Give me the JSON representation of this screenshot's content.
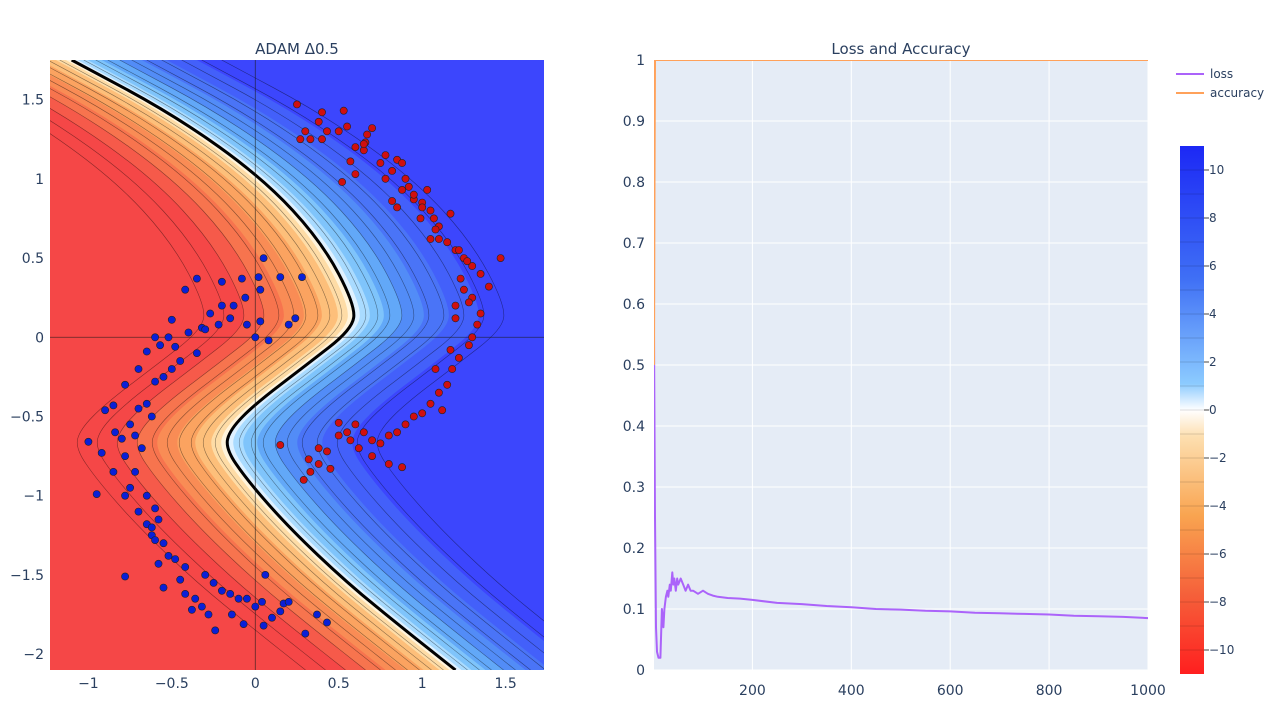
{
  "chart_data": [
    {
      "type": "contour-scatter",
      "title": "ADAM Δ0.5",
      "xlabel": "",
      "ylabel": "",
      "xlim": [
        -1.23,
        1.73
      ],
      "ylim": [
        -2.1,
        1.75
      ],
      "xticks": [
        -1,
        -0.5,
        0,
        0.5,
        1,
        1.5
      ],
      "xtick_labels": [
        "−1",
        "−0.5",
        "0",
        "0.5",
        "1",
        "1.5"
      ],
      "yticks": [
        -2,
        -1.5,
        -1,
        -0.5,
        0,
        0.5,
        1,
        1.5
      ],
      "ytick_labels": [
        "−2",
        "−1.5",
        "−1",
        "−0.5",
        "0",
        "0.5",
        "1",
        "1.5"
      ],
      "decision_boundary": [
        [
          -1.1,
          1.75
        ],
        [
          -0.48,
          1.4
        ],
        [
          0.05,
          1.0
        ],
        [
          0.4,
          0.6
        ],
        [
          0.6,
          0.2
        ],
        [
          0.58,
          0.05
        ],
        [
          0.3,
          -0.18
        ],
        [
          0.0,
          -0.42
        ],
        [
          -0.15,
          -0.58
        ],
        [
          -0.18,
          -0.7
        ],
        [
          -0.05,
          -0.9
        ],
        [
          0.2,
          -1.2
        ],
        [
          0.55,
          -1.55
        ],
        [
          0.9,
          -1.85
        ],
        [
          1.2,
          -2.1
        ]
      ],
      "series": [
        {
          "name": "class 0",
          "color": "#0a1fd8",
          "points": [
            [
              -0.08,
              0.37
            ],
            [
              -0.06,
              0.25
            ],
            [
              -0.05,
              0.08
            ],
            [
              0.0,
              0.0
            ],
            [
              0.03,
              0.1
            ],
            [
              0.08,
              -0.02
            ],
            [
              0.15,
              0.38
            ],
            [
              0.28,
              0.38
            ],
            [
              0.24,
              0.12
            ],
            [
              -0.13,
              0.2
            ],
            [
              -0.2,
              0.2
            ],
            [
              -0.27,
              0.15
            ],
            [
              -0.32,
              0.06
            ],
            [
              -0.4,
              0.03
            ],
            [
              -0.5,
              0.11
            ],
            [
              -0.6,
              0.0
            ],
            [
              -0.65,
              -0.09
            ],
            [
              -0.7,
              -0.2
            ],
            [
              -0.78,
              -0.3
            ],
            [
              -0.85,
              -0.43
            ],
            [
              -0.9,
              -0.46
            ],
            [
              -0.84,
              -0.6
            ],
            [
              -0.8,
              -0.64
            ],
            [
              -0.75,
              -0.55
            ],
            [
              -0.7,
              -0.45
            ],
            [
              -0.65,
              -0.42
            ],
            [
              -0.6,
              -0.28
            ],
            [
              -0.55,
              -0.25
            ],
            [
              -0.5,
              -0.2
            ],
            [
              -0.45,
              -0.15
            ],
            [
              -0.35,
              -0.1
            ],
            [
              -0.3,
              0.05
            ],
            [
              -0.22,
              0.08
            ],
            [
              -0.15,
              0.12
            ],
            [
              0.05,
              0.5
            ],
            [
              0.02,
              0.38
            ],
            [
              -0.35,
              0.37
            ],
            [
              -0.42,
              0.3
            ],
            [
              -0.62,
              -0.5
            ],
            [
              -0.72,
              -0.62
            ],
            [
              -0.68,
              -0.7
            ],
            [
              -1.0,
              -0.66
            ],
            [
              -0.92,
              -0.73
            ],
            [
              -0.78,
              -0.75
            ],
            [
              -0.72,
              -0.85
            ],
            [
              -0.75,
              -0.95
            ],
            [
              -0.78,
              -1.0
            ],
            [
              -0.85,
              -0.85
            ],
            [
              -0.95,
              -0.99
            ],
            [
              -0.7,
              -1.1
            ],
            [
              -0.65,
              -1.18
            ],
            [
              -0.62,
              -1.25
            ],
            [
              -0.6,
              -1.28
            ],
            [
              -0.55,
              -1.3
            ],
            [
              -0.58,
              -1.15
            ],
            [
              -0.52,
              -1.38
            ],
            [
              -0.48,
              -1.4
            ],
            [
              -0.42,
              -1.45
            ],
            [
              -0.58,
              -1.43
            ],
            [
              -0.78,
              -1.51
            ],
            [
              -0.55,
              -1.58
            ],
            [
              -0.42,
              -1.62
            ],
            [
              -0.36,
              -1.65
            ],
            [
              -0.3,
              -1.5
            ],
            [
              -0.25,
              -1.55
            ],
            [
              -0.2,
              -1.6
            ],
            [
              -0.28,
              -1.75
            ],
            [
              -0.24,
              -1.85
            ],
            [
              -0.15,
              -1.62
            ],
            [
              -0.14,
              -1.75
            ],
            [
              -0.07,
              -1.81
            ],
            [
              -0.05,
              -1.65
            ],
            [
              0.0,
              -1.7
            ],
            [
              0.05,
              -1.82
            ],
            [
              0.04,
              -1.67
            ],
            [
              0.1,
              -1.77
            ],
            [
              0.15,
              -1.73
            ],
            [
              0.17,
              -1.68
            ],
            [
              0.2,
              -1.67
            ],
            [
              0.06,
              -1.5
            ],
            [
              0.37,
              -1.75
            ],
            [
              0.3,
              -1.87
            ],
            [
              0.43,
              -1.8
            ],
            [
              -0.1,
              -1.65
            ],
            [
              -0.45,
              -1.53
            ],
            [
              -0.38,
              -1.72
            ],
            [
              -0.32,
              -1.7
            ],
            [
              -0.6,
              -1.08
            ],
            [
              -0.65,
              -1.0
            ],
            [
              -0.62,
              -1.2
            ],
            [
              0.2,
              0.08
            ],
            [
              -0.2,
              0.35
            ],
            [
              0.03,
              0.3
            ],
            [
              -0.57,
              -0.05
            ],
            [
              -0.52,
              0.0
            ],
            [
              -0.48,
              -0.06
            ]
          ]
        },
        {
          "name": "class 1",
          "color": "#d10f0f",
          "points": [
            [
              0.25,
              1.47
            ],
            [
              0.4,
              1.42
            ],
            [
              0.38,
              1.36
            ],
            [
              0.4,
              1.25
            ],
            [
              0.43,
              1.3
            ],
            [
              0.5,
              1.3
            ],
            [
              0.55,
              1.33
            ],
            [
              0.6,
              1.2
            ],
            [
              0.65,
              1.18
            ],
            [
              0.66,
              1.23
            ],
            [
              0.67,
              1.28
            ],
            [
              0.7,
              1.32
            ],
            [
              0.75,
              1.1
            ],
            [
              0.78,
              1.15
            ],
            [
              0.82,
              1.05
            ],
            [
              0.85,
              1.12
            ],
            [
              0.88,
              1.1
            ],
            [
              0.9,
              1.0
            ],
            [
              0.92,
              0.95
            ],
            [
              0.95,
              0.87
            ],
            [
              1.0,
              0.85
            ],
            [
              1.05,
              0.8
            ],
            [
              1.07,
              0.75
            ],
            [
              1.1,
              0.7
            ],
            [
              1.15,
              0.6
            ],
            [
              1.2,
              0.55
            ],
            [
              1.25,
              0.5
            ],
            [
              1.3,
              0.45
            ],
            [
              1.35,
              0.4
            ],
            [
              1.3,
              0.25
            ],
            [
              1.35,
              0.15
            ],
            [
              1.33,
              0.08
            ],
            [
              1.3,
              0.0
            ],
            [
              1.28,
              -0.05
            ],
            [
              1.22,
              -0.13
            ],
            [
              1.18,
              -0.2
            ],
            [
              1.15,
              -0.3
            ],
            [
              1.1,
              -0.35
            ],
            [
              1.05,
              -0.42
            ],
            [
              1.0,
              -0.48
            ],
            [
              0.95,
              -0.5
            ],
            [
              0.9,
              -0.55
            ],
            [
              0.85,
              -0.6
            ],
            [
              0.8,
              -0.62
            ],
            [
              0.75,
              -0.67
            ],
            [
              0.7,
              -0.65
            ],
            [
              0.62,
              -0.7
            ],
            [
              0.57,
              -0.65
            ],
            [
              0.5,
              -0.62
            ],
            [
              0.43,
              -0.72
            ],
            [
              0.38,
              -0.8
            ],
            [
              0.33,
              -0.85
            ],
            [
              0.29,
              -0.9
            ],
            [
              0.32,
              -0.77
            ],
            [
              0.38,
              -0.7
            ],
            [
              0.45,
              -0.83
            ],
            [
              0.15,
              -0.68
            ],
            [
              0.5,
              -0.54
            ],
            [
              0.65,
              -0.6
            ],
            [
              0.7,
              -0.75
            ],
            [
              0.8,
              -0.8
            ],
            [
              0.88,
              -0.82
            ],
            [
              0.6,
              -0.55
            ],
            [
              0.55,
              -0.6
            ],
            [
              1.12,
              -0.46
            ],
            [
              1.08,
              -0.2
            ],
            [
              1.17,
              -0.08
            ],
            [
              1.2,
              0.12
            ],
            [
              1.2,
              0.2
            ],
            [
              1.25,
              0.3
            ],
            [
              1.28,
              0.22
            ],
            [
              1.23,
              0.37
            ],
            [
              1.1,
              0.62
            ],
            [
              1.08,
              0.68
            ],
            [
              1.05,
              0.62
            ],
            [
              1.17,
              0.78
            ],
            [
              1.22,
              0.55
            ],
            [
              1.27,
              0.48
            ],
            [
              1.0,
              0.82
            ],
            [
              0.95,
              0.9
            ],
            [
              0.78,
              1.0
            ],
            [
              0.65,
              1.22
            ],
            [
              0.6,
              1.03
            ],
            [
              0.57,
              1.11
            ],
            [
              0.52,
              0.98
            ],
            [
              0.82,
              0.86
            ],
            [
              0.85,
              0.82
            ],
            [
              0.88,
              0.93
            ],
            [
              0.99,
              0.75
            ],
            [
              1.03,
              0.93
            ],
            [
              0.3,
              1.3
            ],
            [
              0.33,
              1.25
            ],
            [
              0.27,
              1.25
            ],
            [
              0.53,
              1.43
            ],
            [
              1.47,
              0.5
            ],
            [
              1.4,
              0.32
            ]
          ]
        }
      ]
    },
    {
      "type": "line",
      "title": "Loss and Accuracy",
      "xlabel": "",
      "ylabel": "",
      "xlim": [
        1,
        1000
      ],
      "ylim": [
        0,
        1
      ],
      "xticks": [
        200,
        400,
        600,
        800,
        1000
      ],
      "yticks": [
        0,
        0.1,
        0.2,
        0.3,
        0.4,
        0.5,
        0.6,
        0.7,
        0.8,
        0.9,
        1
      ],
      "series": [
        {
          "name": "loss",
          "color": "#ab63fa",
          "x": [
            1,
            3,
            5,
            7,
            10,
            14,
            17,
            20,
            22,
            25,
            28,
            30,
            33,
            35,
            38,
            40,
            42,
            45,
            48,
            50,
            55,
            60,
            65,
            70,
            75,
            80,
            90,
            100,
            110,
            120,
            130,
            150,
            175,
            200,
            250,
            300,
            350,
            400,
            450,
            500,
            550,
            600,
            650,
            700,
            750,
            800,
            850,
            900,
            950,
            1000
          ],
          "y": [
            0.55,
            0.25,
            0.07,
            0.03,
            0.02,
            0.02,
            0.1,
            0.07,
            0.1,
            0.12,
            0.13,
            0.12,
            0.14,
            0.13,
            0.16,
            0.14,
            0.15,
            0.13,
            0.15,
            0.14,
            0.15,
            0.14,
            0.13,
            0.14,
            0.13,
            0.13,
            0.125,
            0.13,
            0.125,
            0.122,
            0.12,
            0.118,
            0.117,
            0.115,
            0.11,
            0.108,
            0.105,
            0.103,
            0.1,
            0.099,
            0.097,
            0.096,
            0.094,
            0.093,
            0.092,
            0.091,
            0.089,
            0.088,
            0.087,
            0.085
          ]
        },
        {
          "name": "accuracy",
          "color": "#ffa15a",
          "x": [
            1,
            2,
            3,
            1000
          ],
          "y": [
            0.5,
            0.8,
            1,
            1
          ]
        }
      ]
    }
  ],
  "legend": [
    {
      "label": "loss",
      "color": "#ab63fa"
    },
    {
      "label": "accuracy",
      "color": "#ffa15a"
    }
  ],
  "colorbar": {
    "ticks": [
      10,
      8,
      6,
      4,
      2,
      0,
      -2,
      -4,
      -6,
      -8,
      -10
    ],
    "tick_labels": [
      "10",
      "8",
      "6",
      "4",
      "2",
      "0",
      "−2",
      "−4",
      "−6",
      "−8",
      "−10"
    ],
    "range": [
      -11,
      11
    ]
  }
}
